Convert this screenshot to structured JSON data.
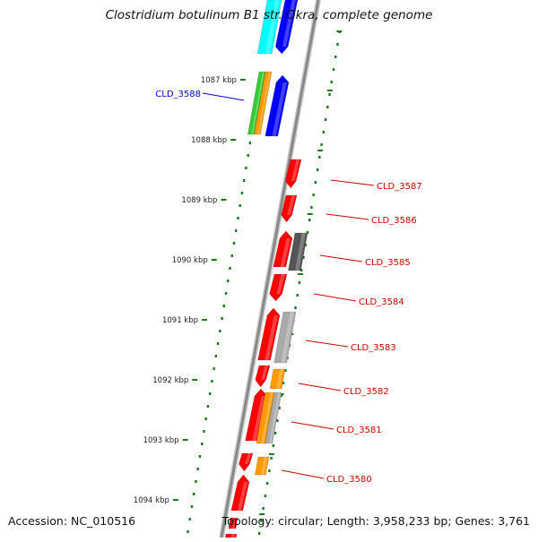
{
  "header": {
    "title": "Clostridium botulinum B1 str. Okra, complete genome"
  },
  "footer": {
    "accession": "Accession: NC_010516",
    "topology": "Topology: circular; Length: 3,958,233 bp; Genes: 3,761"
  },
  "colors": {
    "backbone": "#888888",
    "ruler_tick": "#1a7a1a",
    "label_red": "#cc0000",
    "label_blue": "#0000cc",
    "gene_red": "#ff0000",
    "gene_blue": "#0000ff",
    "gene_cyan": "#00ffff",
    "gene_green": "#33cc33",
    "gene_orange": "#ff9900",
    "gene_gray": "#aaaaaa",
    "gene_darkgray": "#555555"
  },
  "ruler": {
    "labels": [
      "1087 kbp",
      "1088 kbp",
      "1089 kbp",
      "1090 kbp",
      "1091 kbp",
      "1092 kbp",
      "1093 kbp",
      "1094 kbp"
    ]
  },
  "genes": [
    {
      "label": "CLD_3588",
      "label_color": "blue"
    },
    {
      "label": "CLD_3587",
      "label_color": "red"
    },
    {
      "label": "CLD_3586",
      "label_color": "red"
    },
    {
      "label": "CLD_3585",
      "label_color": "red"
    },
    {
      "label": "CLD_3584",
      "label_color": "red"
    },
    {
      "label": "CLD_3583",
      "label_color": "red"
    },
    {
      "label": "CLD_3582",
      "label_color": "red"
    },
    {
      "label": "CLD_3581",
      "label_color": "red"
    },
    {
      "label": "CLD_3580",
      "label_color": "red"
    }
  ]
}
